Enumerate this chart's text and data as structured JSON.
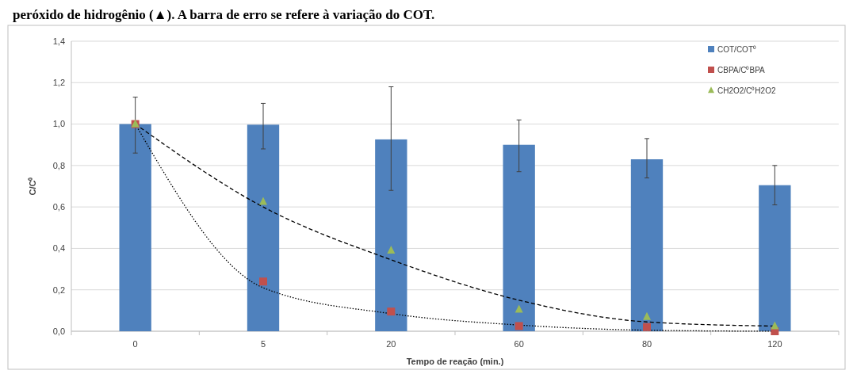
{
  "chart_data": {
    "type": "bar",
    "title": "peróxido de hidrogênio (▲). A barra de erro se refere à variação do COT.",
    "xlabel": "Tempo de reação (min.)",
    "ylabel": "C/C⁰",
    "categories": [
      "0",
      "5",
      "20",
      "60",
      "80",
      "120"
    ],
    "series": [
      {
        "name": "COT/COT⁰",
        "color": "#4f81bd",
        "values": [
          1.0,
          0.997,
          0.926,
          0.9,
          0.83,
          0.705
        ],
        "errors": [
          [
            0.86,
            1.13
          ],
          [
            0.88,
            1.1
          ],
          [
            0.68,
            1.18
          ],
          [
            0.77,
            1.02
          ],
          [
            0.74,
            0.93
          ],
          [
            0.61,
            0.8
          ]
        ]
      },
      {
        "name": "CBPA/C⁰BPA",
        "type": "scatter",
        "marker": "square",
        "color": "#c0504d",
        "values": [
          1.0,
          0.24,
          0.095,
          0.025,
          0.02,
          0.0
        ]
      },
      {
        "name": "CH2O2/C⁰H2O2",
        "type": "scatter",
        "marker": "triangle",
        "color": "#9bbb59",
        "values": [
          1.0,
          0.625,
          0.39,
          0.105,
          0.07,
          0.025
        ]
      },
      {
        "type": "line",
        "color": "#000000",
        "line_style": "dotted",
        "values": [
          1.0,
          0.21,
          0.085,
          0.03,
          0.005,
          0.0
        ]
      },
      {
        "type": "line",
        "color": "#000000",
        "line_style": "dashed",
        "values": [
          1.0,
          0.6,
          0.345,
          0.15,
          0.045,
          0.025
        ]
      }
    ],
    "ylim": [
      0,
      1.4
    ],
    "yticks": [
      {
        "value": 0,
        "label": "0,0"
      },
      {
        "value": 0.2,
        "label": "0,2"
      },
      {
        "value": 0.4,
        "label": "0,4"
      },
      {
        "value": 0.6,
        "label": "0,6"
      },
      {
        "value": 0.8,
        "label": "0,8"
      },
      {
        "value": 1.0,
        "label": "1,0"
      },
      {
        "value": 1.2,
        "label": "1,2"
      },
      {
        "value": 1.4,
        "label": "1,4"
      }
    ],
    "grid": "y",
    "legend": "top right"
  }
}
